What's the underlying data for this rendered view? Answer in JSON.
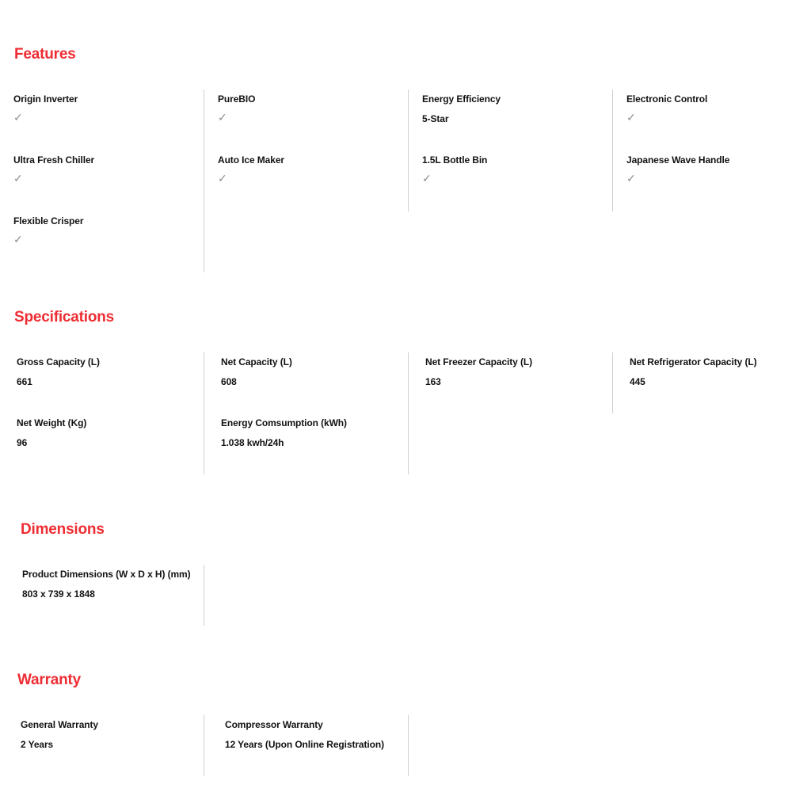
{
  "accent_color": "#ed2d33",
  "check_color": "#8e8e8e",
  "divider_color": "#cfcfcf",
  "check_glyph": "✓",
  "sections": [
    {
      "title": "Features",
      "items": [
        {
          "label": "Origin Inverter",
          "value": "✓",
          "check": true
        },
        {
          "label": "PureBIO",
          "value": "✓",
          "check": true
        },
        {
          "label": "Energy Efficiency",
          "value": "5-Star",
          "check": false
        },
        {
          "label": "Electronic Control",
          "value": "✓",
          "check": true
        },
        {
          "label": "Ultra Fresh Chiller",
          "value": "✓",
          "check": true
        },
        {
          "label": "Auto Ice Maker",
          "value": "✓",
          "check": true
        },
        {
          "label": "1.5L Bottle Bin",
          "value": "✓",
          "check": true
        },
        {
          "label": "Japanese Wave Handle",
          "value": "✓",
          "check": true
        },
        {
          "label": "Flexible Crisper",
          "value": "✓",
          "check": true
        }
      ]
    },
    {
      "title": "Specifications",
      "items": [
        {
          "label": "Gross Capacity (L)",
          "value": "661",
          "check": false
        },
        {
          "label": "Net Capacity (L)",
          "value": "608",
          "check": false
        },
        {
          "label": "Net Freezer Capacity (L)",
          "value": "163",
          "check": false
        },
        {
          "label": "Net Refrigerator Capacity (L)",
          "value": "445",
          "check": false
        },
        {
          "label": "Net Weight (Kg)",
          "value": "96",
          "check": false
        },
        {
          "label": "Energy Comsumption (kWh)",
          "value": "1.038 kwh/24h",
          "check": false
        }
      ]
    },
    {
      "title": "Dimensions",
      "items": [
        {
          "label": "Product Dimensions (W x D x H) (mm)",
          "value": "803 x 739 x 1848",
          "check": false
        }
      ]
    },
    {
      "title": "Warranty",
      "items": [
        {
          "label": "General Warranty",
          "value": "2 Years",
          "check": false
        },
        {
          "label": "Compressor Warranty",
          "value": "12 Years (Upon Online Registration)",
          "check": false
        }
      ]
    }
  ]
}
